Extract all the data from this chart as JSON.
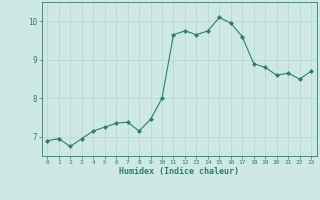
{
  "x": [
    0,
    1,
    2,
    3,
    4,
    5,
    6,
    7,
    8,
    9,
    10,
    11,
    12,
    13,
    14,
    15,
    16,
    17,
    18,
    19,
    20,
    21,
    22,
    23
  ],
  "y": [
    6.9,
    6.95,
    6.75,
    6.95,
    7.15,
    7.25,
    7.35,
    7.38,
    7.15,
    7.45,
    8.0,
    9.65,
    9.75,
    9.65,
    9.75,
    10.1,
    9.95,
    9.6,
    8.9,
    8.8,
    8.6,
    8.65,
    8.5,
    8.7
  ],
  "line_color": "#2e7d6e",
  "marker_color": "#2e7d6e",
  "bg_color": "#cde8e5",
  "grid_color": "#b8d4d0",
  "xlabel": "Humidex (Indice chaleur)",
  "ylabel": "",
  "yticks": [
    7,
    8,
    9,
    10
  ],
  "xtick_labels": [
    "0",
    "1",
    "2",
    "3",
    "4",
    "5",
    "6",
    "7",
    "8",
    "9",
    "10",
    "11",
    "12",
    "13",
    "14",
    "15",
    "16",
    "17",
    "18",
    "19",
    "20",
    "21",
    "22",
    "23"
  ],
  "xlim": [
    -0.5,
    23.5
  ],
  "ylim": [
    6.5,
    10.5
  ],
  "tick_color": "#2e7d6e",
  "axis_color": "#2e7d6e"
}
